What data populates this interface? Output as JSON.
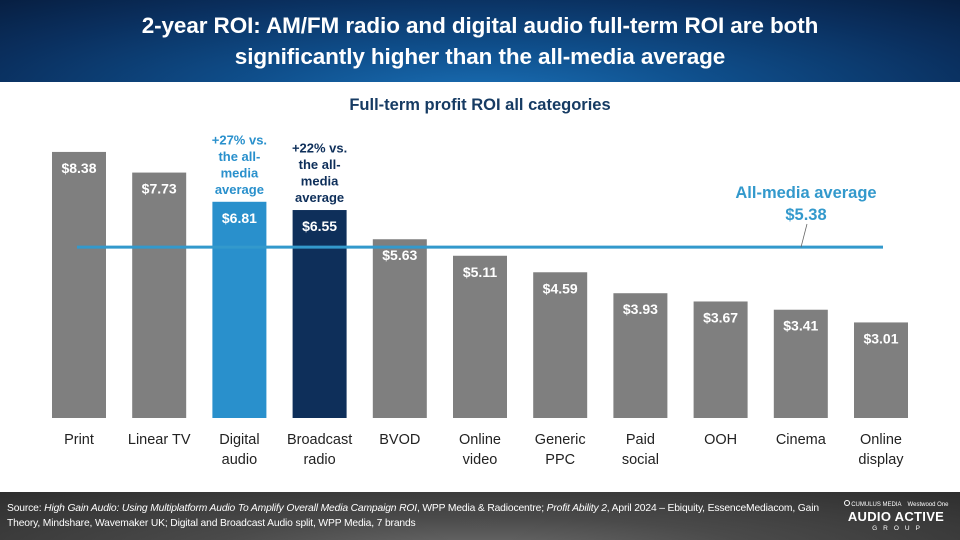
{
  "header": {
    "title_line1": "2-year ROI: AM/FM radio and digital audio full-term ROI are both",
    "title_line2": "significantly higher than the all-media average"
  },
  "footer": {
    "source_prefix": "Source: ",
    "source_italic1": "High Gain Audio: Using Multiplatform Audio To Amplify Overall Media Campaign ROI",
    "source_mid": ", WPP Media & Radiocentre; ",
    "source_italic2": "Profit Ability 2",
    "source_line2": ", April 2024 – Ebiquity, EssenceMediacom, Gain Theory, Mindshare, Wavemaker UK; Digital and Broadcast Audio split, WPP Media, 7 brands",
    "logo_top_left": "CUMULUS MEDIA",
    "logo_top_right": "Westwood One",
    "logo_main": "AUDIO ACTIVE",
    "logo_sub": "GROUP"
  },
  "chart_data": {
    "type": "bar",
    "title": "Full-term profit ROI all categories",
    "xlabel": "",
    "ylabel": "",
    "ylim": [
      0,
      8.38
    ],
    "grid": false,
    "categories": [
      [
        "Print"
      ],
      [
        "Linear TV"
      ],
      [
        "Digital",
        "audio"
      ],
      [
        "Broadcast",
        "radio"
      ],
      [
        "BVOD"
      ],
      [
        "Online",
        "video"
      ],
      [
        "Generic",
        "PPC"
      ],
      [
        "Paid",
        "social"
      ],
      [
        "OOH"
      ],
      [
        "Cinema"
      ],
      [
        "Online",
        "display"
      ]
    ],
    "values": [
      8.38,
      7.73,
      6.81,
      6.55,
      5.63,
      5.11,
      4.59,
      3.93,
      3.67,
      3.41,
      3.01
    ],
    "value_labels": [
      "$8.38",
      "$7.73",
      "$6.81",
      "$6.55",
      "$5.63",
      "$5.11",
      "$4.59",
      "$3.93",
      "$3.67",
      "$3.41",
      "$3.01"
    ],
    "bar_colors": [
      "#7f7f7f",
      "#7f7f7f",
      "#2990cc",
      "#0e2f5a",
      "#7f7f7f",
      "#7f7f7f",
      "#7f7f7f",
      "#7f7f7f",
      "#7f7f7f",
      "#7f7f7f",
      "#7f7f7f"
    ],
    "reference_line": {
      "value": 5.38,
      "label_line1": "All-media average",
      "label_line2": "$5.38",
      "color": "#3399cc"
    },
    "annotations": [
      {
        "category_index": 2,
        "lines": [
          "+27% vs.",
          "the all-",
          "media",
          "average"
        ],
        "color": "#2990cc"
      },
      {
        "category_index": 3,
        "lines": [
          "+22% vs.",
          "the all-",
          "media",
          "average"
        ],
        "color": "#0e2f5a"
      }
    ]
  }
}
